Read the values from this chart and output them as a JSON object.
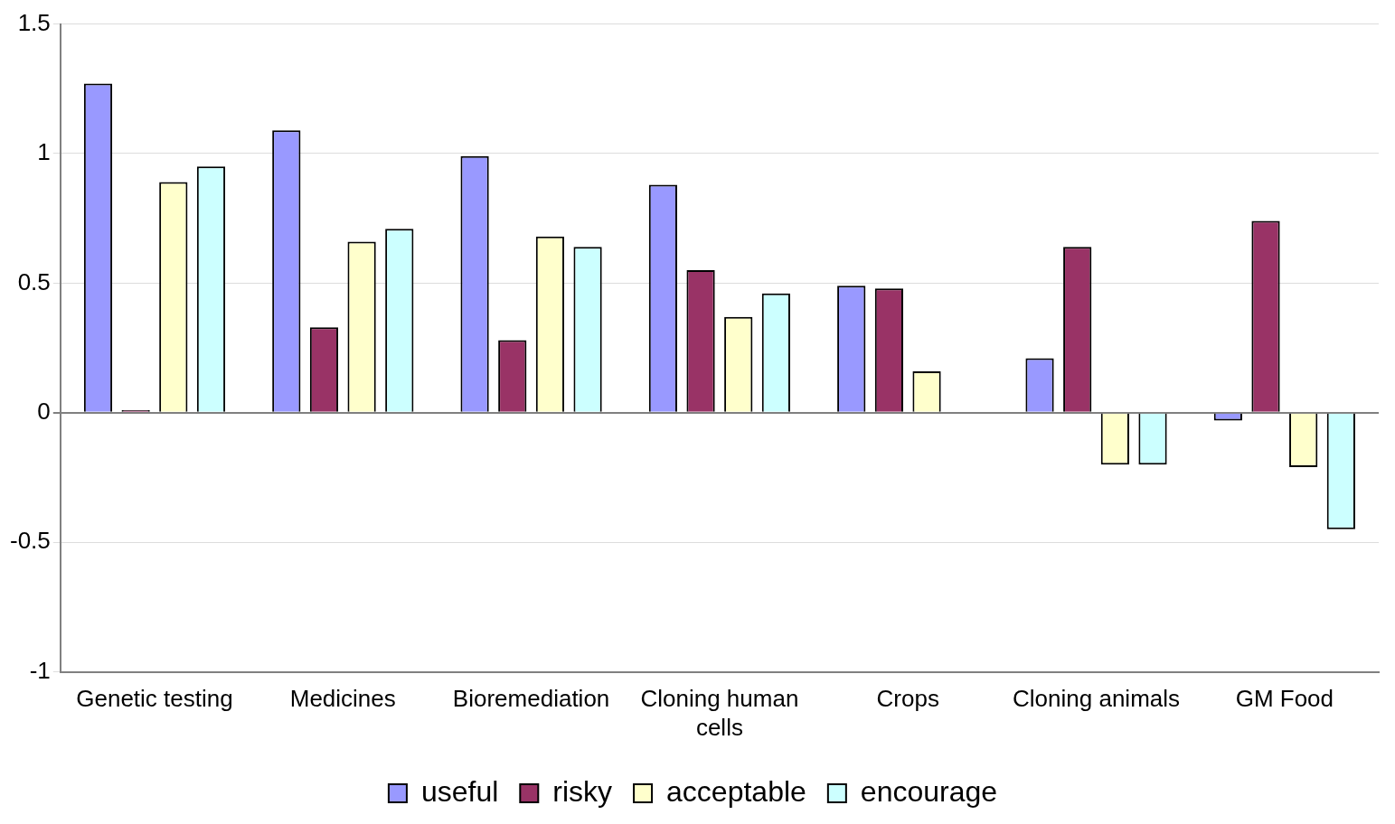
{
  "chart_data": {
    "type": "bar",
    "categories": [
      "Genetic testing",
      "Medicines",
      "Bioremediation",
      "Cloning human cells",
      "Crops",
      "Cloning animals",
      "GM Food"
    ],
    "series": [
      {
        "name": "useful",
        "color": "#9999ff",
        "values": [
          1.27,
          1.09,
          0.99,
          0.88,
          0.49,
          0.21,
          -0.03
        ]
      },
      {
        "name": "risky",
        "color": "#993366",
        "values": [
          0.01,
          0.33,
          0.28,
          0.55,
          0.48,
          0.64,
          0.74
        ]
      },
      {
        "name": "acceptable",
        "color": "#ffffcc",
        "values": [
          0.89,
          0.66,
          0.68,
          0.37,
          0.16,
          -0.2,
          -0.21
        ]
      },
      {
        "name": "encourage",
        "color": "#ccffff",
        "values": [
          0.95,
          0.71,
          0.64,
          0.46,
          null,
          -0.2,
          -0.45
        ]
      }
    ],
    "ylim": [
      -1,
      1.5
    ],
    "yticks": [
      -1,
      -0.5,
      0,
      0.5,
      1,
      1.5
    ],
    "grid": "y",
    "legend": "bottom"
  }
}
